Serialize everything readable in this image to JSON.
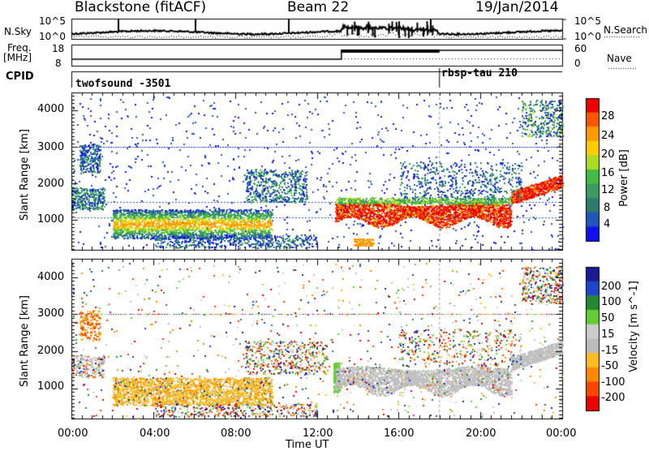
{
  "header": {
    "station": "Blackstone (fitACF)",
    "beam": "Beam 22",
    "date": "19/Jan/2014"
  },
  "top_panels": {
    "nsky_label": "N.Sky",
    "nsearch_label": "N.Search",
    "nsky_ticks": [
      "10^5",
      "10^0"
    ],
    "nsearch_ticks": [
      "10^5",
      "10^0"
    ],
    "freq_label_1": "Freq.",
    "freq_label_2": "[MHz]",
    "freq_ticks": [
      "18",
      "8"
    ],
    "nave_label": "Nave",
    "nave_ticks": [
      "60",
      "0"
    ],
    "cpid_label": "CPID",
    "cpid_segments": [
      {
        "name": "twofsound -3501",
        "start_hour": 0,
        "end_hour": 18
      },
      {
        "name": "rbsp-tau 210",
        "start_hour": 18,
        "end_hour": 24
      }
    ]
  },
  "colors": {
    "power_scale": [
      "#1010ee",
      "#2255bb",
      "#2d7a6e",
      "#3d9a62",
      "#44bb44",
      "#aadd22",
      "#ffcc00",
      "#ff9900",
      "#ff5500",
      "#ee0000"
    ],
    "velocity_scale": [
      "#1a1a99",
      "#2244cc",
      "#228833",
      "#66cc33",
      "#cccccc",
      "#bbbbbb",
      "#ffbb22",
      "#ff8800",
      "#ff4400",
      "#ee0000"
    ],
    "ground_scatter": "#c0c0c0"
  },
  "chart_data": [
    {
      "type": "heatmap",
      "ylabel": "Slant Range [km]",
      "ylim": [
        180,
        4500
      ],
      "xlim": [
        0,
        24
      ],
      "yticks": [
        "1000",
        "2000",
        "3000",
        "4000"
      ],
      "colorbar_label": "Power [dB]",
      "colorbar_ticks": [
        "28",
        "24",
        "20",
        "16",
        "12",
        "8",
        "4"
      ],
      "colorbar_range": [
        0,
        32
      ],
      "features": [
        {
          "region": "early-band",
          "start_hour": 0.0,
          "end_hour": 1.6,
          "range_low_km": 1300,
          "range_high_km": 1900,
          "power_db": 9
        },
        {
          "region": "main-band",
          "start_hour": 2.0,
          "end_hour": 9.5,
          "range_low_km": 600,
          "range_high_km": 1300,
          "power_db": 17
        },
        {
          "region": "day-band",
          "start_hour": 12.9,
          "end_hour": 21.5,
          "range_low_km": 900,
          "range_high_km": 1500,
          "power_db": 28
        },
        {
          "region": "late-band",
          "start_hour": 21.5,
          "end_hour": 24.0,
          "range_low_km": 1500,
          "range_high_km": 2200,
          "power_db": 26
        }
      ]
    },
    {
      "type": "heatmap",
      "ylabel": "Slant Range [km]",
      "xlabel": "Time UT",
      "ylim": [
        180,
        4500
      ],
      "xlim": [
        0,
        24
      ],
      "xticks": [
        "00:00",
        "04:00",
        "08:00",
        "12:00",
        "16:00",
        "20:00",
        "00:00"
      ],
      "yticks": [
        "1000",
        "2000",
        "3000",
        "4000"
      ],
      "colorbar_label": "Velocity [m s^-1]",
      "colorbar_ticks": [
        "200",
        "100",
        "50",
        "15",
        "-15",
        "-50",
        "-100",
        "-200"
      ],
      "colorbar_range": [
        -250,
        250
      ]
    }
  ]
}
